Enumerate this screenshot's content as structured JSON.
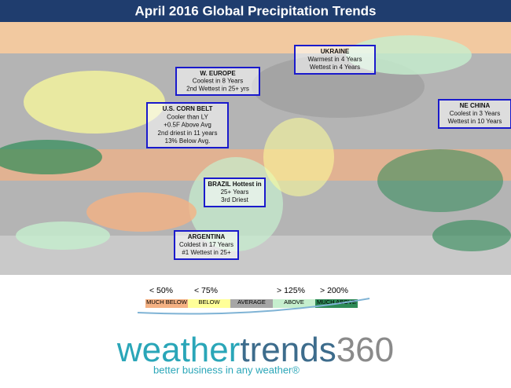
{
  "title": "April 2016 Global Precipitation Trends",
  "annotations": [
    {
      "lines": [
        "W. EUROPE",
        "Coolest in 8 Years",
        "2nd Wettest in 25+ yrs"
      ]
    },
    {
      "lines": [
        "UKRAINE",
        "Warmest in 4 Years",
        "Wettest in 4 Years"
      ]
    },
    {
      "lines": [
        "U.S. CORN BELT",
        "Cooler than LY",
        "+0.5F Above Avg",
        "2nd driest in 11 years",
        "13% Below Avg."
      ]
    },
    {
      "lines": [
        "NE CHINA",
        "Coolest in 3 Years",
        "Wettest in 10 Years"
      ]
    },
    {
      "lines": [
        "BRAZIL Hottest in",
        "25+ Years",
        "3rd Driest"
      ]
    },
    {
      "lines": [
        "ARGENTINA",
        "Coldest in 17 Years",
        "#1 Wettest in 25+"
      ]
    }
  ],
  "legend": {
    "thresholds": [
      "< 50%",
      "< 75%",
      "> 125%",
      "> 200%"
    ],
    "items": [
      {
        "label": "MUCH BELOW",
        "color": "#f4b183"
      },
      {
        "label": "BELOW",
        "color": "#ffff99"
      },
      {
        "label": "AVERAGE",
        "color": "#a6a6a6"
      },
      {
        "label": "ABOVE",
        "color": "#c6efce"
      },
      {
        "label": "MUCH ABOVE",
        "color": "#2e8b57"
      }
    ]
  },
  "logo": {
    "part1": "weather",
    "part2": "trends",
    "part3": "360",
    "tagline": "better business in any weather®"
  }
}
